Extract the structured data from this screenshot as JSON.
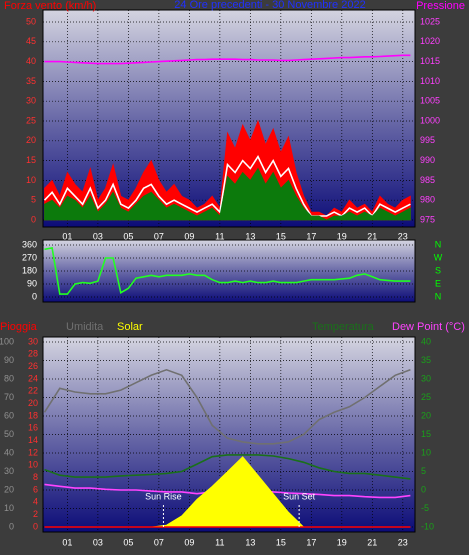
{
  "chart_data": [
    {
      "type": "line",
      "title": "24 Ore precedenti - 30 Novembre 2022",
      "ylabel": "Forza vento (km/h)",
      "y2label": "Pressione",
      "title_color": "#2030ff",
      "ylabel_color": "#ff0000",
      "y2label_color": "#ff00ff",
      "ytick_color": "#ff3030",
      "y2tick_color": "#ff40ff",
      "grid": true,
      "x": [
        -0.5,
        0,
        0.5,
        1,
        1.5,
        2,
        2.5,
        3,
        3.5,
        4,
        4.5,
        5,
        5.5,
        6,
        6.5,
        7,
        7.5,
        8,
        8.5,
        9,
        9.5,
        10,
        10.5,
        11,
        11.5,
        12,
        12.5,
        13,
        13.5,
        14,
        14.5,
        15,
        15.5,
        16,
        16.5,
        17,
        17.5,
        18,
        18.5,
        19,
        19.5,
        20,
        20.5,
        21,
        21.5,
        22,
        22.5,
        23,
        23.5
      ],
      "xlim": [
        -0.6,
        23.8
      ],
      "xticks": [
        {
          "value": 1,
          "label": "01"
        },
        {
          "value": 3,
          "label": "03"
        },
        {
          "value": 5,
          "label": "05"
        },
        {
          "value": 7,
          "label": "07"
        },
        {
          "value": 9,
          "label": "09"
        },
        {
          "value": 11,
          "label": "11"
        },
        {
          "value": 13,
          "label": "13"
        },
        {
          "value": 15,
          "label": "15"
        },
        {
          "value": 17,
          "label": "17"
        },
        {
          "value": 19,
          "label": "19"
        },
        {
          "value": 21,
          "label": "21"
        },
        {
          "value": 23,
          "label": "23"
        }
      ],
      "ylim": [
        0,
        50
      ],
      "yticks": [
        0,
        5,
        10,
        15,
        20,
        25,
        30,
        35,
        40,
        45,
        50
      ],
      "y2lim": [
        975,
        1025
      ],
      "y2ticks": [
        975,
        980,
        985,
        990,
        995,
        1000,
        1005,
        1010,
        1015,
        1020,
        1025
      ],
      "series": [
        {
          "color": "#ff0000",
          "style": "area",
          "values": [
            8,
            10,
            6,
            12,
            9,
            7,
            13,
            5,
            8,
            14,
            6,
            5,
            8,
            12,
            15,
            10,
            7,
            9,
            6,
            5,
            3,
            4,
            6,
            3,
            22,
            18,
            24,
            20,
            25,
            19,
            23,
            17,
            21,
            12,
            6,
            2,
            2,
            1,
            3,
            2,
            5,
            3,
            4,
            2,
            6,
            4,
            3,
            5,
            6
          ]
        },
        {
          "color": "#ffffff",
          "style": "line",
          "values": [
            5,
            7,
            4,
            8,
            6,
            4,
            8,
            3,
            5,
            9,
            4,
            3,
            5,
            8,
            9,
            6,
            4,
            5,
            4,
            3,
            2,
            3,
            4,
            2,
            14,
            12,
            15,
            13,
            16,
            12,
            15,
            11,
            13,
            8,
            4,
            1,
            1,
            1,
            2,
            1,
            3,
            2,
            3,
            1,
            4,
            3,
            2,
            3,
            4
          ]
        },
        {
          "color": "#0c7a0c",
          "style": "area",
          "values": [
            4,
            5,
            3,
            6,
            5,
            3,
            6,
            2,
            4,
            7,
            3,
            2,
            4,
            6,
            7,
            5,
            3,
            4,
            3,
            2,
            1,
            2,
            3,
            1,
            11,
            9,
            12,
            10,
            13,
            9,
            12,
            8,
            10,
            6,
            3,
            1,
            1,
            0,
            1,
            1,
            2,
            1,
            2,
            1,
            3,
            2,
            1,
            2,
            3
          ]
        },
        {
          "color": "#ff00ff",
          "style": "line",
          "axis": "y2",
          "values": [
            1015,
            1015,
            1015,
            1014.9,
            1014.8,
            1014.7,
            1014.6,
            1014.5,
            1014.5,
            1014.5,
            1014.5,
            1014.6,
            1014.7,
            1014.8,
            1014.9,
            1015,
            1015.1,
            1015.2,
            1015.3,
            1015.4,
            1015.5,
            1015.5,
            1015.6,
            1015.6,
            1015.6,
            1015.6,
            1015.5,
            1015.5,
            1015.4,
            1015.4,
            1015.4,
            1015.3,
            1015.3,
            1015.4,
            1015.5,
            1015.6,
            1015.7,
            1015.8,
            1015.9,
            1016,
            1016,
            1016.1,
            1016.2,
            1016.2,
            1016.3,
            1016.4,
            1016.5,
            1016.6,
            1016.6
          ]
        }
      ]
    },
    {
      "type": "line",
      "ytick_color": "#ffffff",
      "y2tick_color": "#00ff00",
      "grid": true,
      "x": [
        -0.5,
        0,
        0.5,
        1,
        1.5,
        2,
        2.5,
        3,
        3.5,
        4,
        4.5,
        5,
        5.5,
        6,
        6.5,
        7,
        7.5,
        8,
        8.5,
        9,
        9.5,
        10,
        10.5,
        11,
        11.5,
        12,
        12.5,
        13,
        13.5,
        14,
        14.5,
        15,
        15.5,
        16,
        16.5,
        17,
        17.5,
        18,
        18.5,
        19,
        19.5,
        20,
        20.5,
        21,
        21.5,
        22,
        22.5,
        23,
        23.5
      ],
      "xlim": [
        -0.6,
        23.8
      ],
      "ylim": [
        0,
        360
      ],
      "yticks": [
        0,
        90,
        180,
        270,
        360
      ],
      "y2lim": [
        0,
        360
      ],
      "y2ticks": [
        {
          "value": 0,
          "label": "N"
        },
        {
          "value": 90,
          "label": "E"
        },
        {
          "value": 180,
          "label": "S"
        },
        {
          "value": 270,
          "label": "W"
        },
        {
          "value": 360,
          "label": "N"
        }
      ],
      "series": [
        {
          "color": "#22ff22",
          "style": "line",
          "values": [
            330,
            340,
            20,
            20,
            90,
            100,
            95,
            110,
            270,
            270,
            30,
            60,
            130,
            140,
            150,
            140,
            150,
            150,
            150,
            160,
            150,
            150,
            120,
            100,
            100,
            110,
            100,
            110,
            100,
            100,
            110,
            100,
            100,
            100,
            110,
            120,
            120,
            120,
            120,
            125,
            130,
            150,
            160,
            140,
            120,
            115,
            110,
            110,
            110
          ]
        }
      ]
    },
    {
      "type": "line",
      "ytick_color": "#909090",
      "y2tick_color": "#1aa01a",
      "y3tick_color": "#ff3030",
      "grid": true,
      "x": [
        -0.5,
        0.5,
        1.5,
        2.5,
        3.5,
        4.5,
        5.5,
        6.5,
        7.5,
        8.5,
        9.5,
        10.5,
        11.5,
        12.5,
        13.5,
        14.5,
        15.5,
        16.5,
        17.5,
        18.5,
        19.5,
        20.5,
        21.5,
        22.5,
        23.5
      ],
      "xlim": [
        -0.6,
        23.8
      ],
      "xticks": [
        {
          "value": 1,
          "label": "01"
        },
        {
          "value": 3,
          "label": "03"
        },
        {
          "value": 5,
          "label": "05"
        },
        {
          "value": 7,
          "label": "07"
        },
        {
          "value": 9,
          "label": "09"
        },
        {
          "value": 11,
          "label": "11"
        },
        {
          "value": 13,
          "label": "13"
        },
        {
          "value": 15,
          "label": "15"
        },
        {
          "value": 17,
          "label": "17"
        },
        {
          "value": 19,
          "label": "19"
        },
        {
          "value": 21,
          "label": "21"
        },
        {
          "value": 23,
          "label": "23"
        }
      ],
      "ylim": [
        0,
        100
      ],
      "yticks": [
        0,
        10,
        20,
        30,
        40,
        50,
        60,
        70,
        80,
        90,
        100
      ],
      "y2lim": [
        -10,
        40
      ],
      "y2ticks": [
        -10,
        -5,
        0,
        5,
        10,
        15,
        20,
        25,
        30,
        35,
        40
      ],
      "y3lim": [
        0,
        30
      ],
      "y3ticks": [
        0,
        2,
        4,
        6,
        8,
        10,
        12,
        14,
        16,
        18,
        20,
        22,
        24,
        26,
        28,
        30
      ],
      "series": [
        {
          "name": "Umidita",
          "color": "#707070",
          "style": "line",
          "values": [
            62,
            75,
            73,
            72,
            72,
            74,
            78,
            82,
            85,
            82,
            70,
            55,
            48,
            46,
            45,
            45,
            46,
            50,
            58,
            62,
            65,
            70,
            76,
            82,
            85
          ]
        },
        {
          "name": "Temperatura",
          "color": "#1a701a",
          "style": "line",
          "axis": "y2",
          "values": [
            5.5,
            4,
            3.5,
            3.5,
            3.5,
            3.8,
            4,
            4.2,
            4.5,
            5,
            7,
            9,
            9.5,
            9.5,
            9.5,
            9.2,
            8.5,
            7.5,
            6,
            5,
            4.5,
            4.5,
            4,
            3.5,
            3
          ]
        },
        {
          "name": "Dew Point (°C)",
          "color": "#ff44ff",
          "style": "line",
          "axis": "y2",
          "values": [
            1.5,
            1,
            0.5,
            0.5,
            0.2,
            0,
            0,
            -0.3,
            -0.5,
            -0.5,
            -1,
            -0.5,
            -0.5,
            0,
            -0.2,
            -0.5,
            -0.8,
            -1,
            -1.2,
            -1.5,
            -1.5,
            -1.8,
            -2,
            -2,
            -1.5
          ]
        },
        {
          "name": "Solar",
          "color": "#ffff00",
          "style": "area",
          "values": [
            0,
            0,
            0,
            0,
            0,
            0,
            0,
            0,
            1,
            6,
            15,
            22,
            30,
            38,
            28,
            18,
            8,
            0,
            0,
            0,
            0,
            0,
            0,
            0,
            0
          ]
        },
        {
          "name": "Pioggia",
          "color": "#ff0000",
          "style": "line",
          "axis": "y3",
          "values": [
            0,
            0,
            0,
            0,
            0,
            0,
            0,
            0,
            0,
            0,
            0,
            0,
            0,
            0,
            0,
            0,
            0,
            0,
            0,
            0,
            0,
            0,
            0,
            0,
            0
          ]
        }
      ],
      "annotations": [
        {
          "text": "Sun Rise",
          "x": 7.3
        },
        {
          "text": "Sun Set",
          "x": 16.2
        }
      ]
    }
  ]
}
